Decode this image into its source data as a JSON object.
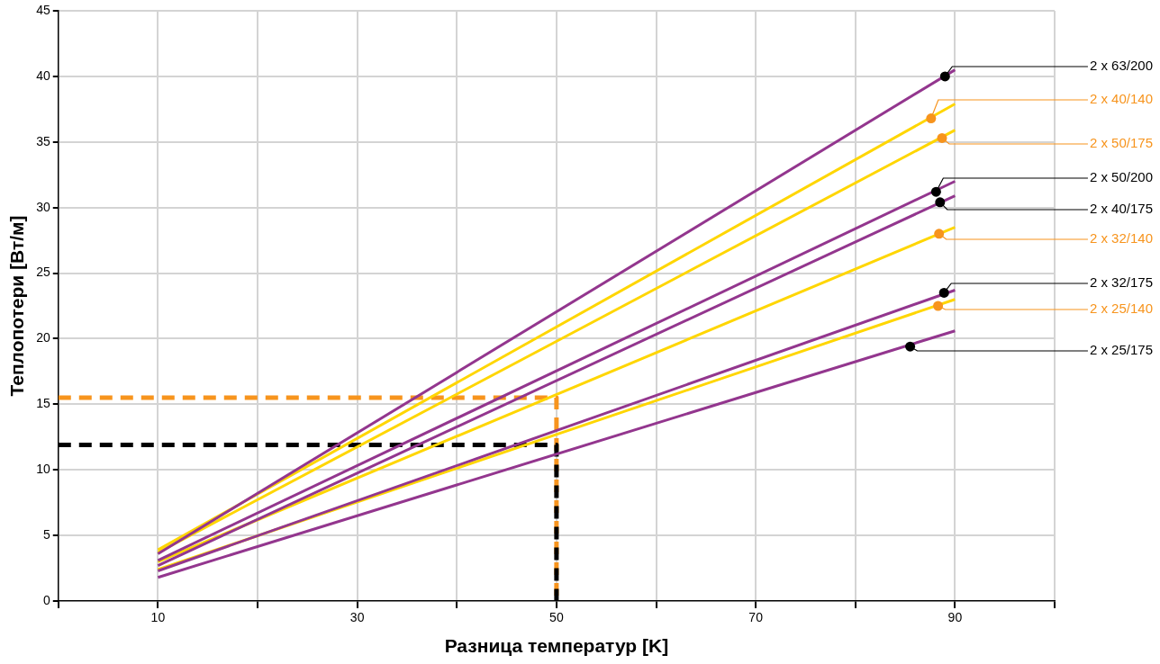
{
  "chart_data": {
    "type": "line",
    "xlabel": "Разница температур [K]",
    "ylabel": "Теплопотери [Вт/м]",
    "xlim": [
      0,
      100
    ],
    "ylim": [
      0,
      45
    ],
    "xticks": [
      {
        "value": 0,
        "label": null
      },
      10,
      {
        "value": 20,
        "label": null
      },
      30,
      {
        "value": 40,
        "label": null
      },
      50,
      {
        "value": 60,
        "label": null
      },
      70,
      {
        "value": 80,
        "label": null
      },
      90,
      {
        "value": 100,
        "label": null
      }
    ],
    "yticks": [
      0,
      5,
      10,
      15,
      20,
      25,
      30,
      35,
      40,
      45
    ],
    "grid": true,
    "legend": false,
    "marker": "none",
    "line_style": "solid",
    "series": [
      {
        "color": "#93368e",
        "x": [
          10,
          90
        ],
        "values": [
          3.6,
          40.5
        ]
      },
      {
        "color": "#ffd600",
        "x": [
          10,
          90
        ],
        "values": [
          3.9,
          37.9
        ]
      },
      {
        "color": "#ffd600",
        "x": [
          10,
          90
        ],
        "values": [
          3.7,
          35.9
        ]
      },
      {
        "color": "#93368e",
        "x": [
          10,
          90
        ],
        "values": [
          3.1,
          32.0
        ]
      },
      {
        "color": "#93368e",
        "x": [
          10,
          90
        ],
        "values": [
          2.7,
          30.9
        ]
      },
      {
        "color": "#ffd600",
        "x": [
          10,
          90
        ],
        "values": [
          3.0,
          28.5
        ]
      },
      {
        "color": "#93368e",
        "x": [
          10,
          90
        ],
        "values": [
          2.3,
          23.7
        ]
      },
      {
        "color": "#ffd600",
        "x": [
          10,
          90
        ],
        "values": [
          2.4,
          23.0
        ]
      },
      {
        "color": "#93368e",
        "x": [
          10,
          90
        ],
        "values": [
          1.8,
          20.6
        ]
      },
      {
        "color": "#000000",
        "line_style": "dashed",
        "x": [
          0,
          50,
          50
        ],
        "values": [
          11.9,
          11.9,
          0
        ]
      },
      {
        "color": "#f7941d",
        "line_style": "dashed",
        "x": [
          0,
          50,
          50
        ],
        "values": [
          15.5,
          15.5,
          0
        ]
      }
    ],
    "annotations": [
      {
        "text": "2 x 63/200",
        "x": 89,
        "y": 40.0
      },
      {
        "text": "2 x 40/140",
        "x": 87.6,
        "y": 36.8
      },
      {
        "text": "2 x 50/175",
        "x": 88.7,
        "y": 35.3
      },
      {
        "text": "2 x 50/200",
        "x": 88.1,
        "y": 31.2
      },
      {
        "text": "2 x 40/175",
        "x": 88.5,
        "y": 30.4
      },
      {
        "text": "2 x 32/140",
        "x": 88.4,
        "y": 28.0
      },
      {
        "text": "2 x 32/175",
        "x": 88.9,
        "y": 23.5
      },
      {
        "text": "2 x 25/140",
        "x": 88.3,
        "y": 22.5
      },
      {
        "text": "2 x 25/175",
        "x": 85.5,
        "y": 19.4
      }
    ]
  }
}
